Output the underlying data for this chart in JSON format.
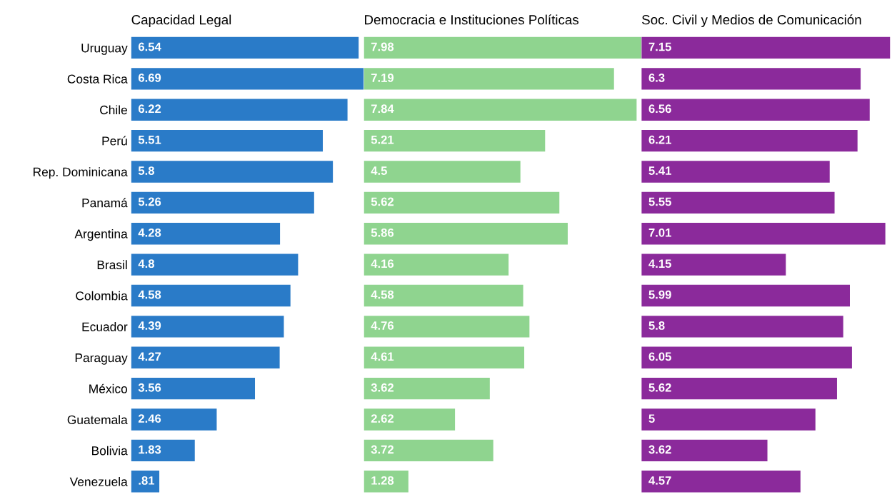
{
  "chart_data": [
    {
      "type": "bar",
      "orientation": "horizontal",
      "title": "Capacidad Legal",
      "categories": [
        "Uruguay",
        "Costa Rica",
        "Chile",
        "Perú",
        "Rep. Dominicana",
        "Panamá",
        "Argentina",
        "Brasil",
        "Colombia",
        "Ecuador",
        "Paraguay",
        "México",
        "Guatemala",
        "Bolivia",
        "Venezuela"
      ],
      "values": [
        6.54,
        6.69,
        6.22,
        5.51,
        5.8,
        5.26,
        4.28,
        4.8,
        4.58,
        4.39,
        4.27,
        3.56,
        2.46,
        1.83,
        0.81
      ],
      "value_labels": [
        "6.54",
        "6.69",
        "6.22",
        "5.51",
        "5.8",
        "5.26",
        "4.28",
        "4.8",
        "4.58",
        "4.39",
        "4.27",
        "3.56",
        "2.46",
        "1.83",
        ".81"
      ],
      "color": "#2a7bc8",
      "tick_labels": "y"
    },
    {
      "type": "bar",
      "orientation": "horizontal",
      "title": "Democracia e Instituciones Políticas",
      "values": [
        7.98,
        7.19,
        7.84,
        5.21,
        4.5,
        5.62,
        5.86,
        4.16,
        4.58,
        4.76,
        4.61,
        3.62,
        2.62,
        3.72,
        1.28
      ],
      "data_labels": true,
      "color": "#8fd48f",
      "tick_labels": false
    },
    {
      "type": "bar",
      "orientation": "horizontal",
      "title": "Soc. Civil y Medios de Comunicación",
      "values": [
        7.15,
        6.3,
        6.56,
        6.21,
        5.41,
        5.55,
        7.01,
        4.15,
        5.99,
        5.8,
        6.05,
        5.62,
        5,
        3.62,
        4.57
      ],
      "data_labels": true,
      "color": "#8b2a9b",
      "tick_labels": false
    }
  ]
}
